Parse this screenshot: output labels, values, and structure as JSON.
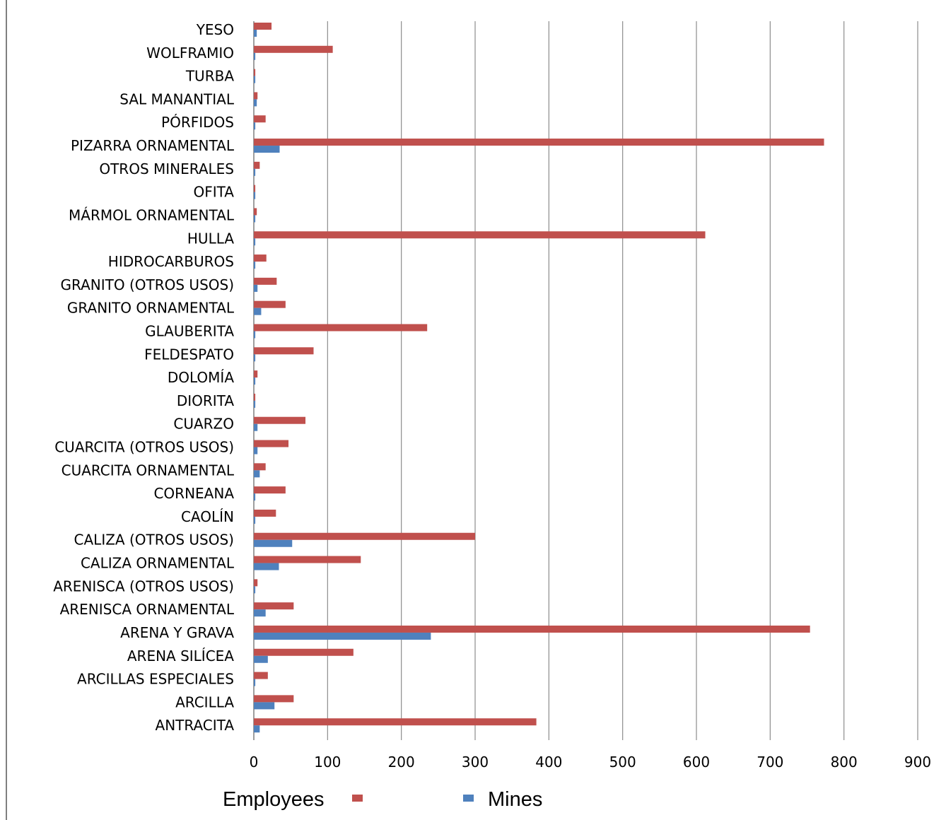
{
  "chart_data": {
    "type": "bar",
    "orientation": "horizontal",
    "categories": [
      "ANTRACITA",
      "ARCILLA",
      "ARCILLAS ESPECIALES",
      "ARENA SILÍCEA",
      "ARENA Y GRAVA",
      "ARENISCA ORNAMENTAL",
      "ARENISCA (OTROS USOS)",
      "CALIZA ORNAMENTAL",
      "CALIZA (OTROS USOS)",
      "CAOLÍN",
      "CORNEANA",
      "CUARCITA ORNAMENTAL",
      "CUARCITA (OTROS USOS)",
      "CUARZO",
      "DIORITA",
      "DOLOMÍA",
      "FELDESPATO",
      "GLAUBERITA",
      "GRANITO ORNAMENTAL",
      "GRANITO (OTROS USOS)",
      "HIDROCARBUROS",
      "HULLA",
      "MÁRMOL ORNAMENTAL",
      "OFITA",
      "OTROS MINERALES",
      "PIZARRA ORNAMENTAL",
      "PÓRFIDOS",
      "SAL MANANTIAL",
      "TURBA",
      "WOLFRAMIO",
      "YESO"
    ],
    "series": [
      {
        "name": "Employees",
        "color": "#c0504d",
        "values": [
          383,
          54,
          19,
          135,
          754,
          54,
          5,
          145,
          300,
          30,
          43,
          16,
          47,
          70,
          2,
          5,
          81,
          235,
          43,
          31,
          17,
          612,
          4,
          2,
          8,
          773,
          16,
          5,
          2,
          107,
          24
        ]
      },
      {
        "name": "Mines",
        "color": "#4f81bd",
        "values": [
          8,
          28,
          2,
          19,
          240,
          16,
          2,
          34,
          52,
          2,
          2,
          8,
          5,
          5,
          2,
          2,
          2,
          2,
          10,
          5,
          2,
          2,
          2,
          2,
          2,
          35,
          2,
          4,
          2,
          2,
          4
        ]
      }
    ],
    "xlim": [
      0,
      900
    ],
    "xticks": [
      "0",
      "100",
      "200",
      "300",
      "400",
      "500",
      "600",
      "700",
      "800",
      "900"
    ],
    "grid": true,
    "legend_position": "bottom"
  }
}
